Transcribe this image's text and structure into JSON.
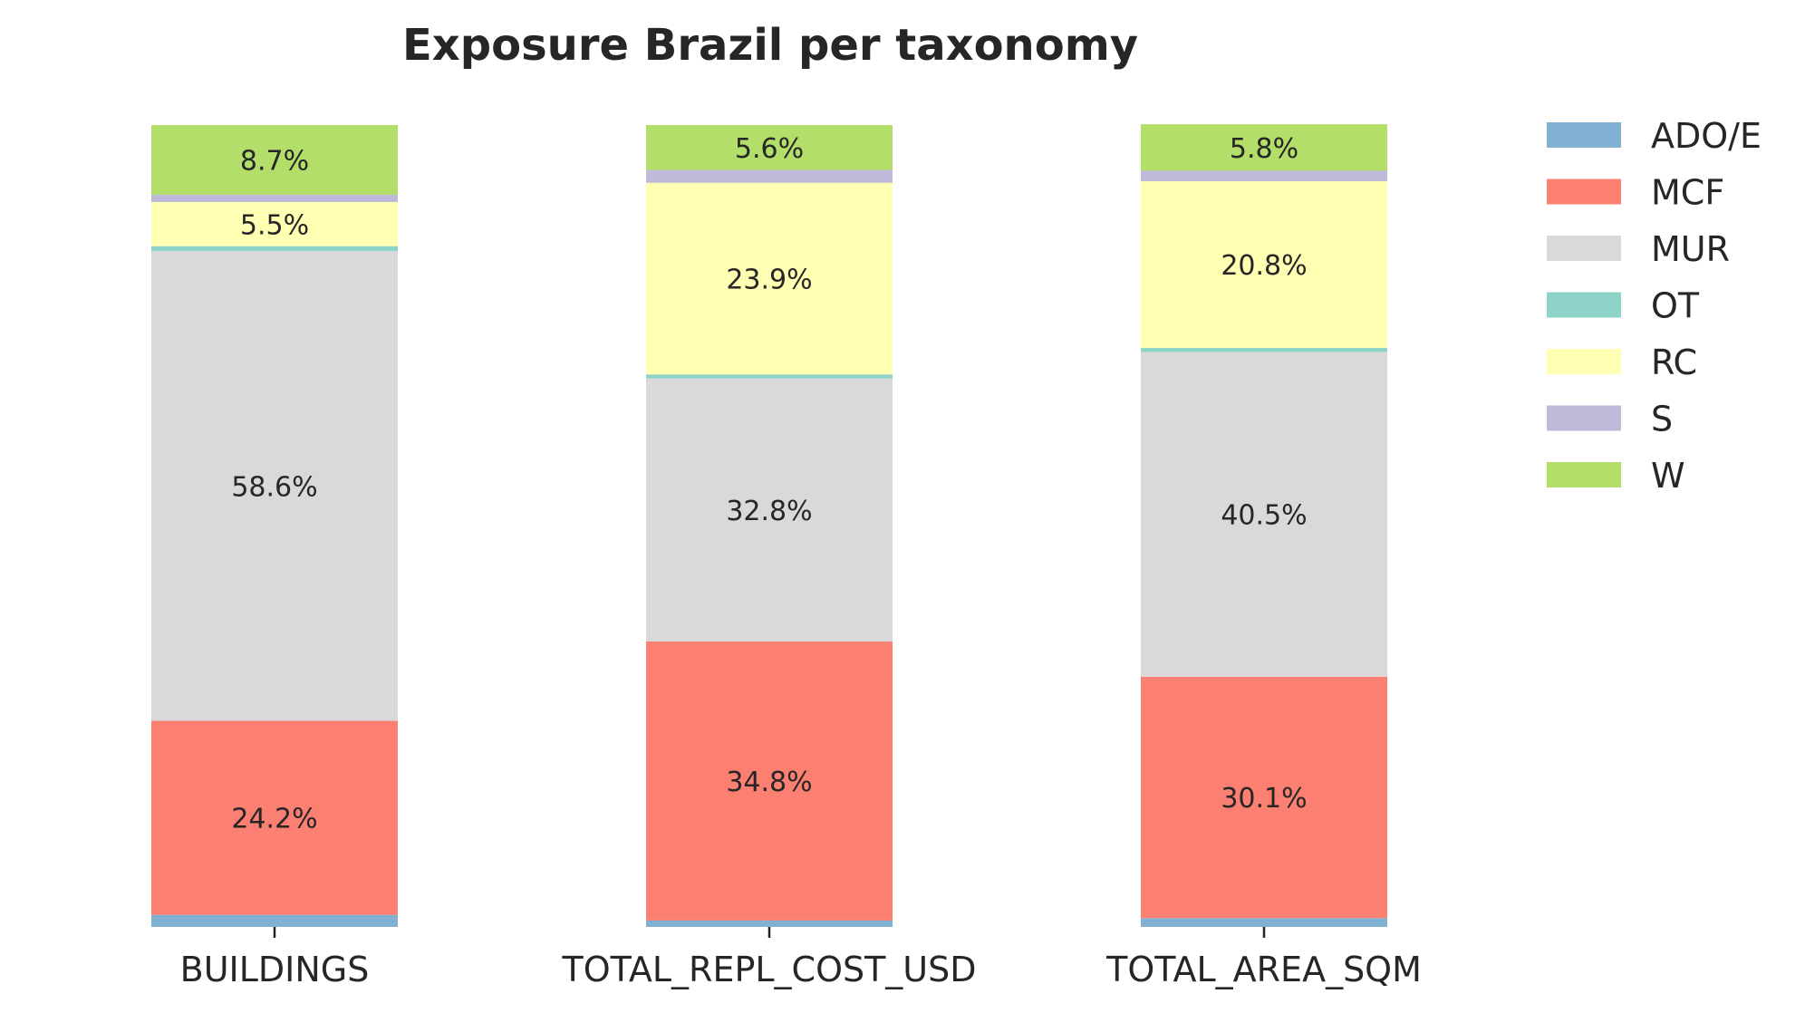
{
  "chart_data": {
    "type": "bar",
    "stacked": true,
    "normalized_percent": true,
    "title": "Exposure Brazil per taxonomy",
    "xlabel": "",
    "ylabel": "",
    "ylim": [
      0,
      100
    ],
    "grid": false,
    "legend_position": "right",
    "categories": [
      "BUILDINGS",
      "TOTAL_REPL_COST_USD",
      "TOTAL_AREA_SQM"
    ],
    "series": [
      {
        "name": "ADO/E",
        "color": "#80b1d3",
        "values": [
          1.5,
          0.8,
          1.1
        ],
        "labels": [
          "",
          "",
          ""
        ]
      },
      {
        "name": "MCF",
        "color": "#fb8072",
        "values": [
          24.2,
          34.8,
          30.1
        ],
        "labels": [
          "24.2%",
          "34.8%",
          "30.1%"
        ]
      },
      {
        "name": "MUR",
        "color": "#d9d9d9",
        "values": [
          58.6,
          32.8,
          40.5
        ],
        "labels": [
          "58.6%",
          "32.8%",
          "40.5%"
        ]
      },
      {
        "name": "OT",
        "color": "#8dd3c7",
        "values": [
          0.6,
          0.5,
          0.5
        ],
        "labels": [
          "",
          "",
          ""
        ]
      },
      {
        "name": "RC",
        "color": "#ffffb3",
        "values": [
          5.5,
          23.9,
          20.8
        ],
        "labels": [
          "5.5%",
          "23.9%",
          "20.8%"
        ]
      },
      {
        "name": "S",
        "color": "#bebada",
        "values": [
          0.9,
          1.6,
          1.3
        ],
        "labels": [
          "",
          "",
          ""
        ]
      },
      {
        "name": "W",
        "color": "#b3de69",
        "values": [
          8.7,
          5.6,
          5.8
        ],
        "labels": [
          "8.7%",
          "5.6%",
          "5.8%"
        ]
      }
    ]
  }
}
